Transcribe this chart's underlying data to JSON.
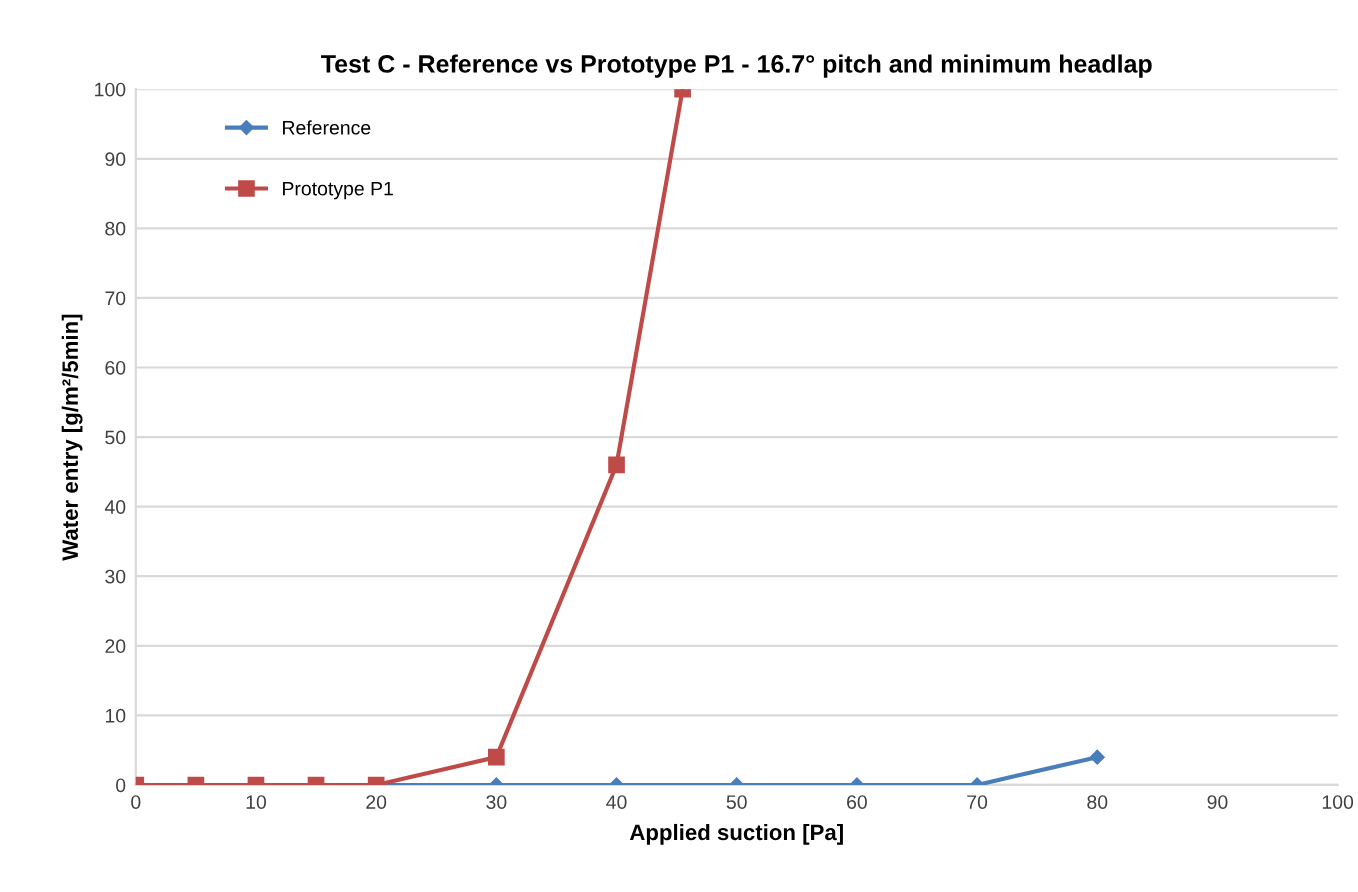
{
  "chart_data": {
    "type": "line",
    "title": "Test C - Reference vs Prototype P1 - 16.7° pitch and minimum headlap",
    "xlabel": "Applied suction [Pa]",
    "ylabel": "Water entry [g/m²/5min]",
    "xlim": [
      0,
      100
    ],
    "xticks": [
      0,
      10,
      20,
      30,
      40,
      50,
      60,
      70,
      80,
      90,
      100
    ],
    "ylim": [
      0,
      100
    ],
    "yticks": [
      0,
      10,
      20,
      30,
      40,
      50,
      60,
      70,
      80,
      90,
      100
    ],
    "grid": "y",
    "legend": "top left",
    "series": [
      {
        "name": "Reference",
        "color": "#4a7ebb",
        "marker": "diamond",
        "x": [
          20,
          30,
          40,
          50,
          60,
          70,
          80
        ],
        "values": [
          0,
          0,
          0,
          0,
          0,
          0,
          4
        ]
      },
      {
        "name": "Prototype P1",
        "color": "#be4b48",
        "marker": "square",
        "x": [
          0,
          5,
          10,
          15,
          20,
          30,
          40,
          45.5
        ],
        "values": [
          0,
          0,
          0,
          0,
          0,
          4,
          46,
          100
        ]
      }
    ]
  }
}
